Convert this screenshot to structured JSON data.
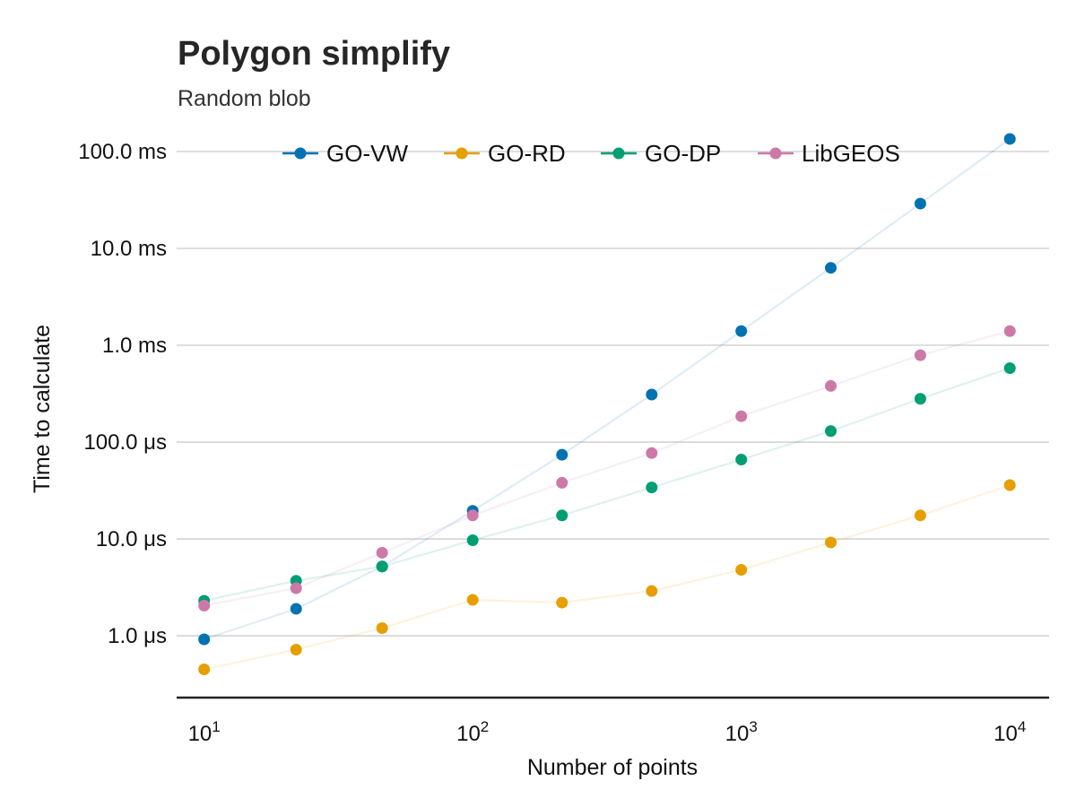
{
  "chart_data": {
    "type": "scatter",
    "title": "Polygon simplify",
    "subtitle": "Random blob",
    "xlabel": "Number of points",
    "ylabel": "Time to calculate",
    "xscale": "log10",
    "yscale": "log10",
    "xlim": [
      7.9,
      14000
    ],
    "ylim_seconds": [
      2.3e-07,
      0.15
    ],
    "x_ticks": [
      {
        "value": 10,
        "base": "10",
        "exp": "1"
      },
      {
        "value": 100,
        "base": "10",
        "exp": "2"
      },
      {
        "value": 1000,
        "base": "10",
        "exp": "3"
      },
      {
        "value": 10000,
        "base": "10",
        "exp": "4"
      }
    ],
    "y_ticks": [
      {
        "value": 1e-06,
        "label": "1.0 μs"
      },
      {
        "value": 1e-05,
        "label": "10.0 μs"
      },
      {
        "value": 0.0001,
        "label": "100.0 μs"
      },
      {
        "value": 0.001,
        "label": "1.0 ms"
      },
      {
        "value": 0.01,
        "label": "10.0 ms"
      },
      {
        "value": 0.1,
        "label": "100.0 ms"
      }
    ],
    "x": [
      10,
      22,
      46,
      100,
      215,
      464,
      1000,
      2154,
      4642,
      10000
    ],
    "series": [
      {
        "name": "GO-VW",
        "color": "#0072b2",
        "values": [
          9.2e-07,
          1.9e-06,
          5.2e-06,
          1.95e-05,
          7.4e-05,
          0.00031,
          0.0014,
          0.0063,
          0.029,
          0.135
        ]
      },
      {
        "name": "GO-RD",
        "color": "#e69f00",
        "values": [
          4.5e-07,
          7.2e-07,
          1.2e-06,
          2.35e-06,
          2.2e-06,
          2.9e-06,
          4.8e-06,
          9.2e-06,
          1.75e-05,
          3.6e-05
        ]
      },
      {
        "name": "GO-DP",
        "color": "#009e73",
        "values": [
          2.3e-06,
          3.7e-06,
          5.2e-06,
          9.7e-06,
          1.75e-05,
          3.4e-05,
          6.6e-05,
          0.00013,
          0.00028,
          0.00058
        ]
      },
      {
        "name": "LibGEOS",
        "color": "#cc79a7",
        "values": [
          2.05e-06,
          3.1e-06,
          7.2e-06,
          1.75e-05,
          3.8e-05,
          7.7e-05,
          0.000185,
          0.00038,
          0.00079,
          0.0014
        ]
      }
    ],
    "legend_position": "top",
    "grid": "horizontal"
  }
}
